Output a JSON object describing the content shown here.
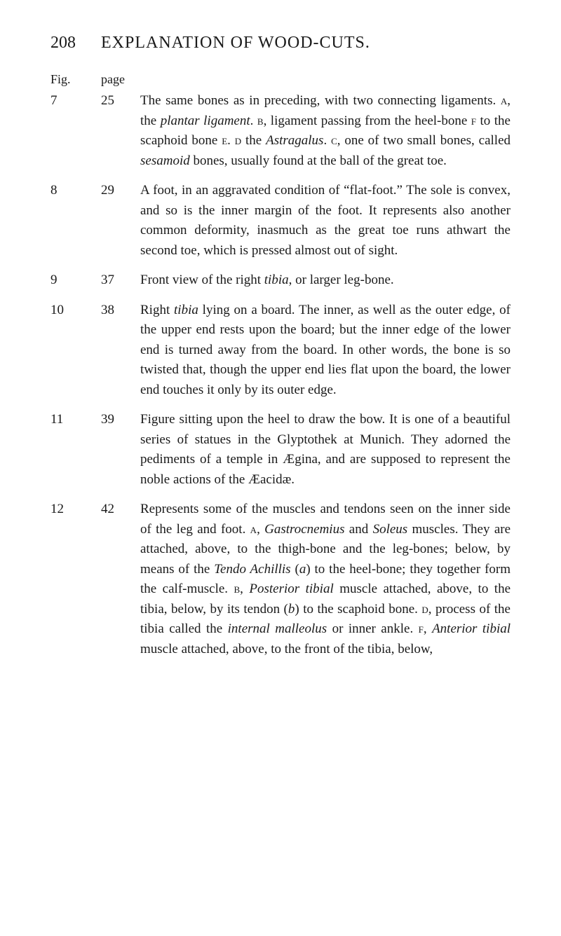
{
  "header": {
    "page_number": "208",
    "title": "EXPLANATION OF WOOD-CUTS."
  },
  "column_heads": {
    "fig": "Fig.",
    "page": "page"
  },
  "entries": [
    {
      "fig": "7",
      "page": "25",
      "html": "The same bones as in preceding, with two connecting ligaments. <span class=\"smallcaps\">a</span>, the <em>plantar ligament</em>. <span class=\"smallcaps\">b</span>, ligament passing from the heel-bone <span class=\"smallcaps\">f</span> to the scaphoid bone <span class=\"smallcaps\">e</span>. <span class=\"smallcaps\">d</span> the <em>Astragalus</em>. <span class=\"smallcaps\">c</span>, one of two small bones, called <em>sesamoid</em> bones, usually found at the ball of the great toe."
    },
    {
      "fig": "8",
      "page": "29",
      "html": "A foot, in an aggravated condition of “flat-foot.” The sole is convex, and so is the inner margin of the foot. It represents also another common deformity, inasmuch as the great toe runs athwart the second toe, which is pressed almost out of sight."
    },
    {
      "fig": "9",
      "page": "37",
      "html": "Front view of the right <em>tibia</em>, or larger leg-bone."
    },
    {
      "fig": "10",
      "page": "38",
      "html": "Right <em>tibia</em> lying on a board. The inner, as well as the outer edge, of the upper end rests upon the board; but the inner edge of the lower end is turned away from the board. In other words, the bone is so twisted that, though the upper end lies flat upon the board, the lower end touches it only by its outer edge."
    },
    {
      "fig": "11",
      "page": "39",
      "html": "Figure sitting upon the heel to draw the bow. It is one of a beautiful series of statues in the Glyptothek at Munich. They adorned the pediments of a temple in Ægina, and are supposed to represent the noble actions of the Æacidæ."
    },
    {
      "fig": "12",
      "page": "42",
      "html": "Represents some of the muscles and tendons seen on the inner side of the leg and foot. <span class=\"smallcaps\">a</span>, <em>Gastrocnemius</em> and <em>Soleus</em> muscles. They are attached, above, to the thigh-bone and the leg-bones; below, by means of the <em>Tendo Achillis</em> (<em>a</em>) to the heel-bone; they together form the calf-muscle. <span class=\"smallcaps\">b</span>, <em>Posterior tibial</em> muscle attached, above, to the tibia, below, by its tendon (<em>b</em>) to the scaphoid bone. <span class=\"smallcaps\">d</span>, process of the tibia called the <em>internal malleolus</em> or inner ankle. <span class=\"smallcaps\">f</span>, <em>Anterior tibial</em> muscle attached, above, to the front of the tibia, below,"
    }
  ]
}
